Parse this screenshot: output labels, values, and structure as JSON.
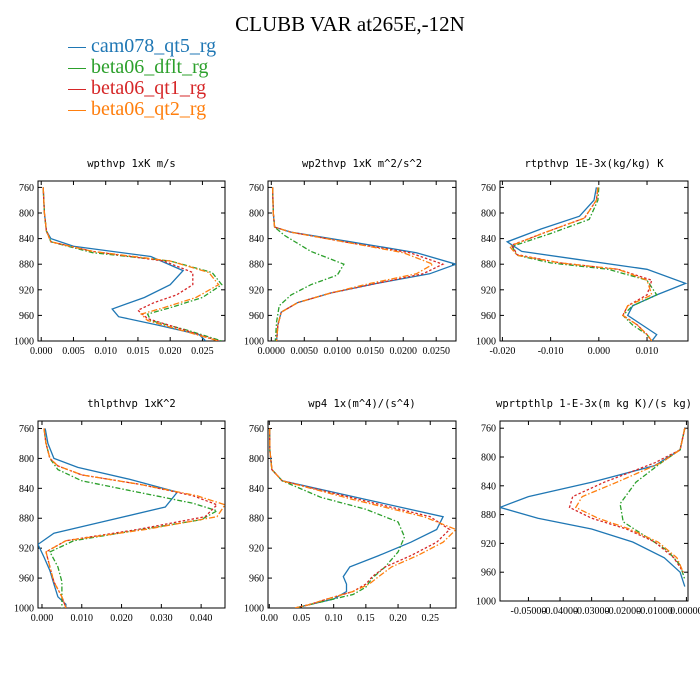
{
  "figure": {
    "title": "CLUBB VAR at265E,-12N"
  },
  "legend": [
    {
      "label": "cam078_qt5_rg",
      "color": "#1f77b4"
    },
    {
      "label": "beta06_dflt_rg",
      "color": "#2ca02c"
    },
    {
      "label": "beta06_qt1_rg",
      "color": "#d62728"
    },
    {
      "label": "beta06_qt2_rg",
      "color": "#ff7f0e"
    }
  ],
  "chart_data": [
    {
      "type": "line",
      "title": "wpthvp  1xK m/s",
      "xlim": [
        -0.0005,
        0.0285
      ],
      "ylim": [
        1000,
        750
      ],
      "xticks": [
        0.0,
        0.005,
        0.01,
        0.015,
        0.02,
        0.025
      ],
      "xticklabels": [
        "0.000",
        "0.005",
        "0.010",
        "0.015",
        "0.020",
        "0.025"
      ],
      "yticks": [
        760,
        800,
        840,
        880,
        920,
        960,
        1000
      ],
      "series": [
        {
          "name": "cam078_qt5_rg",
          "x": [
            0.0003,
            0.0005,
            0.0008,
            0.0015,
            0.005,
            0.017,
            0.022,
            0.02,
            0.016,
            0.011,
            0.012,
            0.018,
            0.0245,
            0.0255
          ],
          "y": [
            760,
            800,
            828,
            840,
            852,
            868,
            890,
            912,
            932,
            950,
            962,
            975,
            990,
            1000
          ]
        },
        {
          "name": "beta06_dflt_rg",
          "x": [
            0.0003,
            0.0005,
            0.0008,
            0.0015,
            0.008,
            0.02,
            0.0265,
            0.028,
            0.025,
            0.02,
            0.0165,
            0.017,
            0.023,
            0.028
          ],
          "y": [
            760,
            800,
            828,
            845,
            862,
            875,
            893,
            912,
            932,
            948,
            958,
            968,
            984,
            1000
          ]
        },
        {
          "name": "beta06_qt1_rg",
          "x": [
            0.0003,
            0.0005,
            0.0008,
            0.0015,
            0.008,
            0.019,
            0.0235,
            0.0235,
            0.021,
            0.0175,
            0.015,
            0.0165,
            0.022,
            0.0275
          ],
          "y": [
            760,
            800,
            828,
            845,
            860,
            875,
            893,
            912,
            928,
            940,
            952,
            965,
            982,
            1000
          ]
        },
        {
          "name": "beta06_qt2_rg",
          "x": [
            0.0003,
            0.0005,
            0.0008,
            0.0015,
            0.008,
            0.02,
            0.026,
            0.0275,
            0.024,
            0.019,
            0.0155,
            0.0165,
            0.022,
            0.0275
          ],
          "y": [
            760,
            800,
            828,
            845,
            860,
            875,
            893,
            912,
            932,
            948,
            958,
            968,
            984,
            1000
          ]
        }
      ]
    },
    {
      "type": "line",
      "title": "wp2thvp  1xK m^2/s^2",
      "xlim": [
        -0.0005,
        0.028
      ],
      "ylim": [
        1000,
        750
      ],
      "xticks": [
        0.0,
        0.005,
        0.01,
        0.015,
        0.02,
        0.025
      ],
      "xticklabels": [
        "0.0000",
        "0.0050",
        "0.0100",
        "0.0150",
        "0.0200",
        "0.0250"
      ],
      "yticks": [
        760,
        800,
        840,
        880,
        920,
        960,
        1000
      ],
      "series": [
        {
          "name": "cam078_qt5_rg",
          "x": [
            0.0002,
            0.0003,
            0.0005,
            0.003,
            0.012,
            0.022,
            0.028,
            0.024,
            0.016,
            0.009,
            0.004,
            0.0015,
            0.001,
            0.0008
          ],
          "y": [
            760,
            800,
            822,
            830,
            845,
            862,
            880,
            895,
            910,
            925,
            940,
            955,
            975,
            1000
          ]
        },
        {
          "name": "beta06_dflt_rg",
          "x": [
            0.0002,
            0.0003,
            0.0005,
            0.002,
            0.006,
            0.011,
            0.01,
            0.006,
            0.003,
            0.0012,
            0.0008,
            0.0006
          ],
          "y": [
            760,
            800,
            822,
            835,
            860,
            880,
            897,
            912,
            928,
            945,
            970,
            1000
          ]
        },
        {
          "name": "beta06_qt1_rg",
          "x": [
            0.0002,
            0.0003,
            0.0005,
            0.003,
            0.011,
            0.021,
            0.026,
            0.023,
            0.016,
            0.009,
            0.004,
            0.0015,
            0.001,
            0.0008
          ],
          "y": [
            760,
            800,
            822,
            830,
            845,
            862,
            880,
            895,
            910,
            925,
            940,
            955,
            975,
            1000
          ]
        },
        {
          "name": "beta06_qt2_rg",
          "x": [
            0.0002,
            0.0003,
            0.0005,
            0.003,
            0.011,
            0.02,
            0.0245,
            0.022,
            0.015,
            0.009,
            0.004,
            0.0015,
            0.001,
            0.0008
          ],
          "y": [
            760,
            800,
            822,
            830,
            845,
            862,
            880,
            895,
            910,
            925,
            940,
            955,
            975,
            1000
          ]
        }
      ]
    },
    {
      "type": "line",
      "title": "rtpthvp  1E-3x(kg/kg) K",
      "xlim": [
        -0.0205,
        0.0185
      ],
      "ylim": [
        1000,
        750
      ],
      "xticks": [
        -0.02,
        -0.01,
        0.0,
        0.01
      ],
      "xticklabels": [
        "-0.020",
        "-0.010",
        "0.000",
        "0.010"
      ],
      "yticks": [
        760,
        800,
        840,
        880,
        920,
        960,
        1000
      ],
      "series": [
        {
          "name": "cam078_qt5_rg",
          "x": [
            -0.0005,
            -0.001,
            -0.004,
            -0.012,
            -0.019,
            -0.016,
            -0.004,
            0.01,
            0.018,
            0.012,
            0.007,
            0.006,
            0.009,
            0.012,
            0.011
          ],
          "y": [
            760,
            780,
            805,
            825,
            845,
            860,
            873,
            888,
            910,
            928,
            945,
            960,
            975,
            990,
            1000
          ]
        },
        {
          "name": "beta06_dflt_rg",
          "x": [
            0.0,
            -0.0002,
            -0.002,
            -0.01,
            -0.018,
            -0.017,
            -0.01,
            0.002,
            0.01,
            0.012,
            0.007,
            0.005,
            0.007,
            0.01,
            0.011
          ],
          "y": [
            760,
            780,
            810,
            832,
            852,
            866,
            878,
            888,
            905,
            928,
            945,
            960,
            975,
            990,
            1000
          ]
        },
        {
          "name": "beta06_qt1_rg",
          "x": [
            -0.0002,
            -0.0005,
            -0.003,
            -0.011,
            -0.018,
            -0.017,
            -0.008,
            0.004,
            0.011,
            0.01,
            0.006,
            0.005,
            0.008,
            0.01,
            0.011
          ],
          "y": [
            760,
            780,
            808,
            830,
            850,
            865,
            878,
            888,
            905,
            928,
            945,
            960,
            975,
            990,
            1000
          ]
        },
        {
          "name": "beta06_qt2_rg",
          "x": [
            -0.0002,
            -0.0005,
            -0.003,
            -0.011,
            -0.0185,
            -0.017,
            -0.008,
            0.004,
            0.01,
            0.011,
            0.006,
            0.005,
            0.008,
            0.01,
            0.011
          ],
          "y": [
            760,
            780,
            808,
            830,
            852,
            866,
            878,
            888,
            905,
            928,
            945,
            960,
            975,
            990,
            1000
          ]
        }
      ]
    },
    {
      "type": "line",
      "title": "thlpthvp  1xK^2",
      "xlim": [
        -0.001,
        0.046
      ],
      "ylim": [
        1000,
        750
      ],
      "xticks": [
        0.0,
        0.01,
        0.02,
        0.03,
        0.04
      ],
      "xticklabels": [
        "0.000",
        "0.010",
        "0.020",
        "0.030",
        "0.040"
      ],
      "yticks": [
        760,
        800,
        840,
        880,
        920,
        960,
        1000
      ],
      "series": [
        {
          "name": "cam078_qt5_rg",
          "x": [
            0.0008,
            0.0015,
            0.003,
            0.009,
            0.022,
            0.034,
            0.031,
            0.015,
            0.003,
            -0.001,
            0.0005,
            0.002,
            0.003,
            0.004,
            0.006,
            0.006
          ],
          "y": [
            760,
            780,
            800,
            812,
            828,
            845,
            865,
            885,
            900,
            915,
            932,
            950,
            968,
            985,
            995,
            1000
          ]
        },
        {
          "name": "beta06_dflt_rg",
          "x": [
            0.0005,
            0.001,
            0.002,
            0.004,
            0.01,
            0.024,
            0.038,
            0.044,
            0.04,
            0.025,
            0.008,
            0.002,
            0.004,
            0.005,
            0.005,
            0.005
          ],
          "y": [
            760,
            780,
            800,
            815,
            830,
            845,
            860,
            870,
            882,
            895,
            910,
            925,
            945,
            965,
            985,
            1000
          ]
        },
        {
          "name": "beta06_qt1_rg",
          "x": [
            0.0005,
            0.001,
            0.002,
            0.004,
            0.01,
            0.025,
            0.038,
            0.044,
            0.041,
            0.024,
            0.006,
            0.001,
            0.002,
            0.003,
            0.005,
            0.006
          ],
          "y": [
            760,
            780,
            800,
            810,
            822,
            835,
            850,
            862,
            878,
            895,
            910,
            925,
            945,
            965,
            985,
            1000
          ]
        },
        {
          "name": "beta06_qt2_rg",
          "x": [
            0.0005,
            0.001,
            0.002,
            0.004,
            0.01,
            0.025,
            0.039,
            0.046,
            0.044,
            0.026,
            0.006,
            0.001,
            0.002,
            0.003,
            0.005,
            0.006
          ],
          "y": [
            760,
            780,
            800,
            810,
            822,
            835,
            850,
            862,
            878,
            895,
            910,
            925,
            945,
            965,
            985,
            1000
          ]
        }
      ]
    },
    {
      "type": "line",
      "title": "wp4  1x(m^4)/(s^4)",
      "xlim": [
        -0.002,
        0.29
      ],
      "ylim": [
        1000,
        750
      ],
      "xticks": [
        0.0,
        0.05,
        0.1,
        0.15,
        0.2,
        0.25
      ],
      "xticklabels": [
        "0.00",
        "0.05",
        "0.10",
        "0.15",
        "0.20",
        "0.25"
      ],
      "yticks": [
        760,
        800,
        840,
        880,
        920,
        960,
        1000
      ],
      "series": [
        {
          "name": "cam078_qt5_rg",
          "x": [
            0.0005,
            0.001,
            0.004,
            0.02,
            0.15,
            0.27,
            0.26,
            0.22,
            0.17,
            0.125,
            0.115,
            0.12,
            0.12,
            0.1,
            0.06,
            0.04
          ],
          "y": [
            760,
            790,
            815,
            830,
            855,
            878,
            895,
            912,
            930,
            945,
            958,
            968,
            978,
            988,
            996,
            1000
          ]
        },
        {
          "name": "beta06_dflt_rg",
          "x": [
            0.0005,
            0.001,
            0.004,
            0.02,
            0.08,
            0.15,
            0.2,
            0.21,
            0.2,
            0.18,
            0.16,
            0.15,
            0.13,
            0.09,
            0.06,
            0.04
          ],
          "y": [
            760,
            790,
            815,
            830,
            852,
            868,
            885,
            905,
            925,
            945,
            960,
            972,
            982,
            990,
            996,
            1000
          ]
        },
        {
          "name": "beta06_qt1_rg",
          "x": [
            0.0005,
            0.001,
            0.004,
            0.02,
            0.14,
            0.25,
            0.28,
            0.26,
            0.22,
            0.18,
            0.16,
            0.15,
            0.13,
            0.09,
            0.06,
            0.04
          ],
          "y": [
            760,
            790,
            815,
            830,
            855,
            878,
            895,
            912,
            930,
            945,
            958,
            968,
            978,
            988,
            996,
            1000
          ]
        },
        {
          "name": "beta06_qt2_rg",
          "x": [
            0.0005,
            0.001,
            0.004,
            0.02,
            0.13,
            0.24,
            0.29,
            0.27,
            0.23,
            0.19,
            0.17,
            0.155,
            0.13,
            0.09,
            0.06,
            0.04
          ],
          "y": [
            760,
            790,
            815,
            830,
            855,
            878,
            895,
            912,
            930,
            945,
            958,
            968,
            978,
            988,
            996,
            1000
          ]
        }
      ]
    },
    {
      "type": "line",
      "title": "wprtpthlp  1-E-3x(m kg K)/(s kg)",
      "xlim": [
        -0.059,
        0.0005
      ],
      "ylim": [
        1000,
        750
      ],
      "xticks": [
        -0.05,
        -0.04,
        -0.03,
        -0.02,
        -0.01,
        0.0
      ],
      "xticklabels": [
        "-0.05000",
        "-0.04000",
        "-0.03000",
        "-0.02000",
        "-0.01000",
        "0.00000"
      ],
      "yticks": [
        760,
        800,
        840,
        880,
        920,
        960,
        1000
      ],
      "series": [
        {
          "name": "cam078_qt5_rg",
          "x": [
            -0.0005,
            -0.002,
            -0.01,
            -0.03,
            -0.05,
            -0.059,
            -0.047,
            -0.03,
            -0.017,
            -0.007,
            -0.002,
            -0.0005
          ],
          "y": [
            760,
            790,
            812,
            835,
            855,
            870,
            885,
            900,
            918,
            940,
            960,
            980
          ]
        },
        {
          "name": "beta06_dflt_rg",
          "x": [
            -0.0005,
            -0.002,
            -0.008,
            -0.016,
            -0.021,
            -0.02,
            -0.013,
            -0.006,
            -0.002,
            -0.0005
          ],
          "y": [
            760,
            790,
            808,
            835,
            865,
            890,
            910,
            930,
            950,
            970
          ]
        },
        {
          "name": "beta06_qt1_rg",
          "x": [
            -0.0005,
            -0.002,
            -0.01,
            -0.026,
            -0.036,
            -0.037,
            -0.03,
            -0.019,
            -0.01,
            -0.004,
            -0.001
          ],
          "y": [
            760,
            790,
            808,
            835,
            855,
            870,
            885,
            900,
            918,
            940,
            960
          ]
        },
        {
          "name": "beta06_qt2_rg",
          "x": [
            -0.0005,
            -0.002,
            -0.008,
            -0.022,
            -0.033,
            -0.035,
            -0.028,
            -0.018,
            -0.009,
            -0.003,
            -0.001
          ],
          "y": [
            760,
            790,
            808,
            835,
            855,
            870,
            885,
            900,
            918,
            940,
            960
          ]
        }
      ]
    }
  ]
}
